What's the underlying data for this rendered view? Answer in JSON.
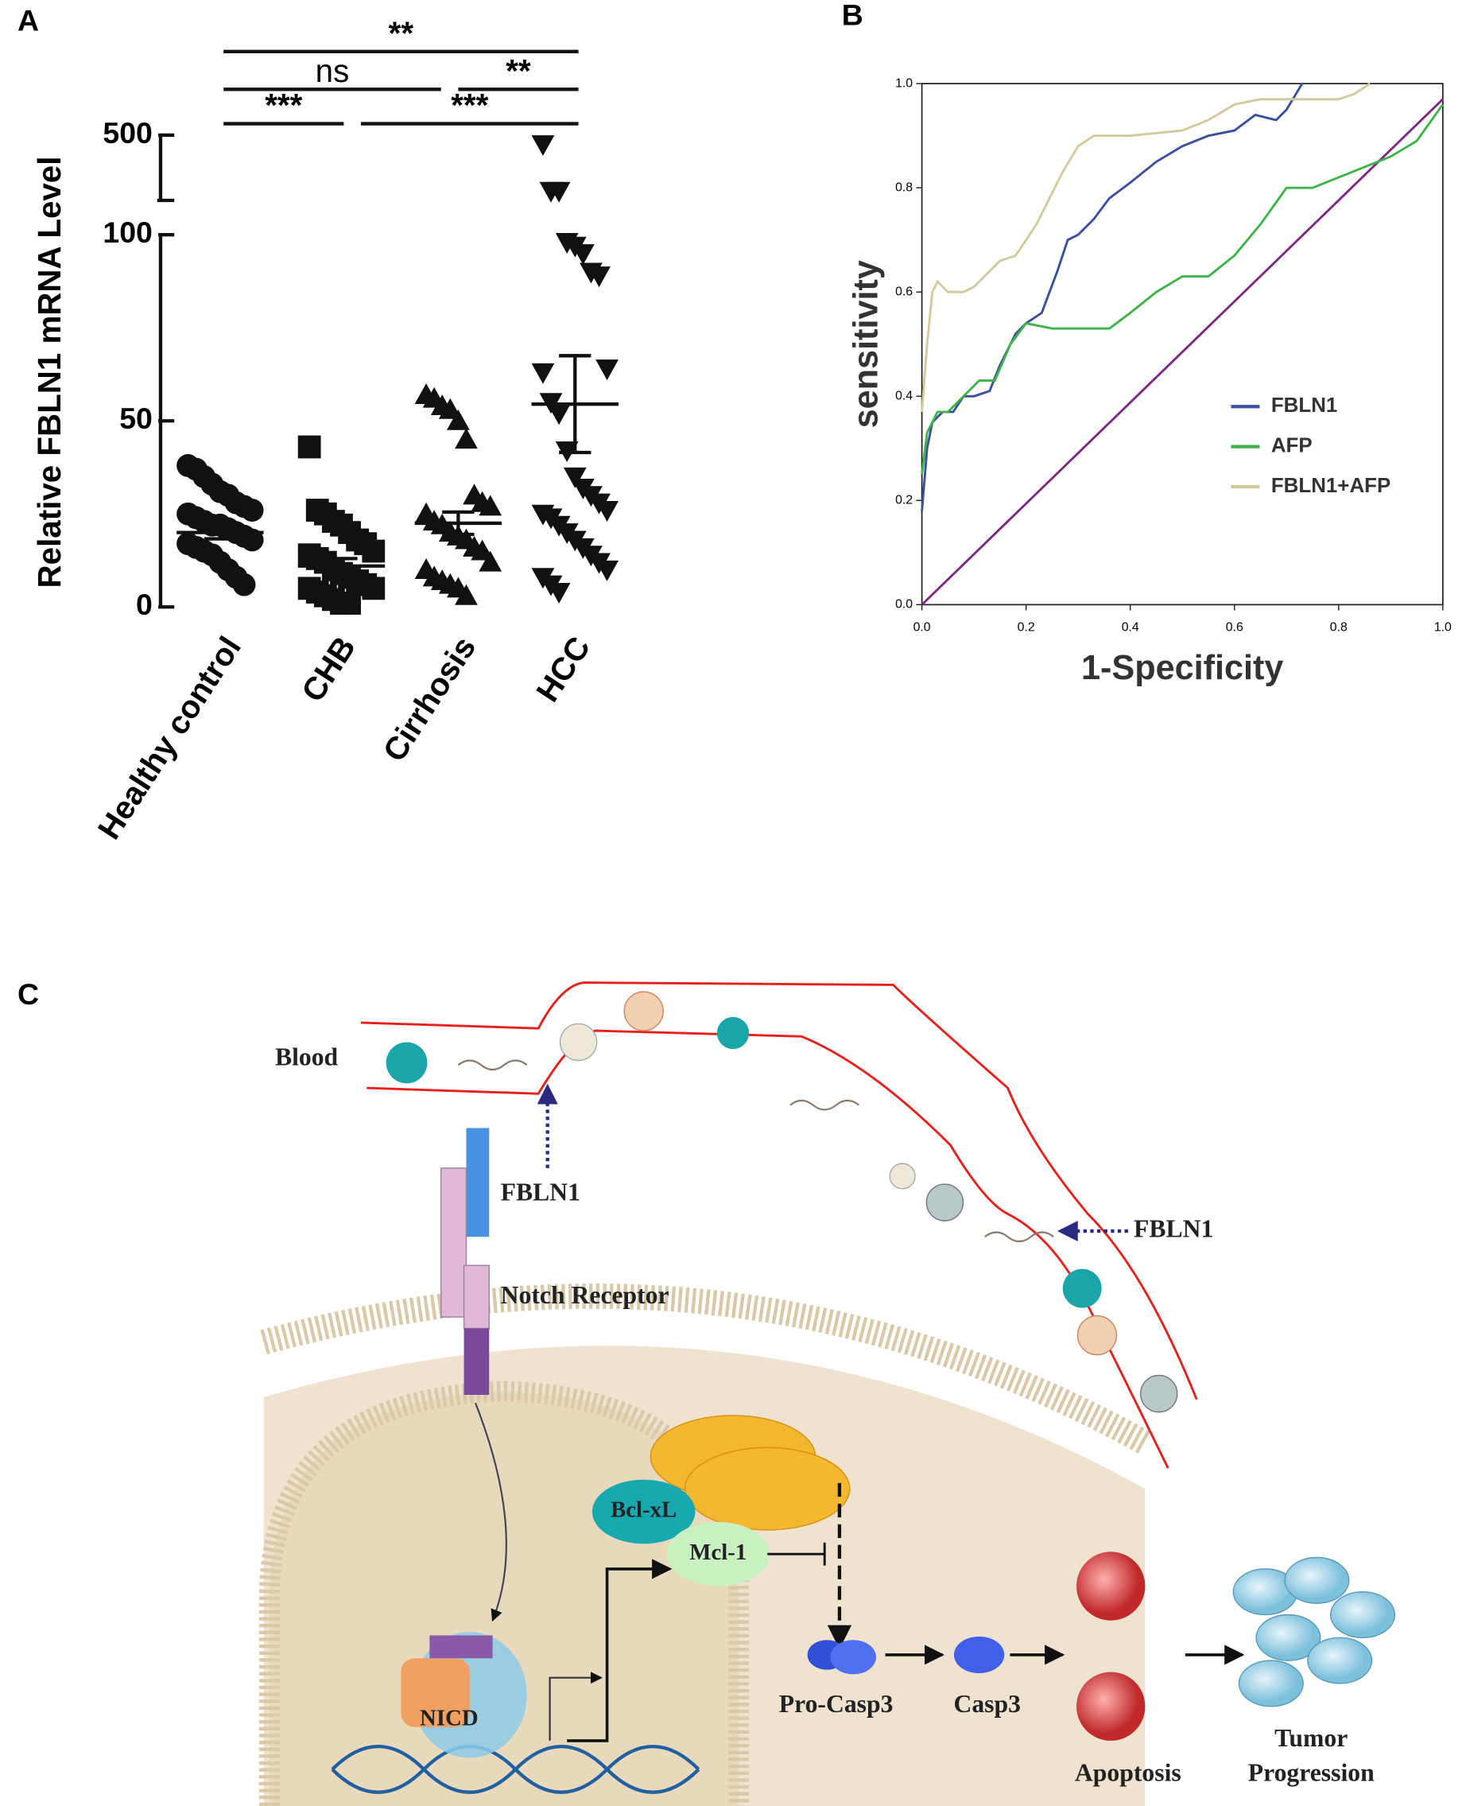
{
  "chart_data": [
    {
      "type": "dotplot",
      "ylabel": "Relative FBLN1 mRNA Level",
      "categories": [
        "Healthy control",
        "CHB",
        "Cirrhosis",
        "HCC"
      ],
      "ylim": [
        0,
        500
      ],
      "ybreak": [
        100,
        150
      ],
      "yticks": [
        0,
        50,
        100,
        500
      ],
      "groups": [
        {
          "marker": "circle",
          "mean": 20,
          "sem": 1.7,
          "values": [
            38,
            37,
            35,
            33,
            31,
            30,
            28,
            27,
            26,
            25,
            24,
            23,
            22,
            22,
            21,
            20,
            19,
            18,
            17,
            16,
            15,
            14,
            12,
            10,
            8,
            6
          ]
        },
        {
          "marker": "square",
          "mean": 11,
          "sem": 2,
          "values": [
            43,
            26,
            25,
            23,
            22,
            20,
            18,
            17,
            15,
            14,
            13,
            12,
            10,
            9,
            8,
            7,
            6,
            5,
            5,
            4,
            3,
            2,
            1,
            1
          ]
        },
        {
          "marker": "triangle-up",
          "mean": 22.5,
          "sem": 3,
          "values": [
            57,
            56,
            54,
            53,
            50,
            45,
            30,
            28,
            27,
            25,
            23,
            22,
            20,
            19,
            18,
            16,
            15,
            12,
            10,
            8,
            7,
            6,
            5,
            3
          ]
        },
        {
          "marker": "triangle-down",
          "mean": 54.5,
          "sem": 13,
          "values": [
            450,
            200,
            200,
            98,
            97,
            95,
            90,
            89,
            64,
            63,
            55,
            52,
            42,
            35,
            32,
            30,
            28,
            26,
            25,
            24,
            22,
            20,
            18,
            16,
            14,
            12,
            10,
            8,
            6,
            4
          ]
        }
      ],
      "significance": [
        "**",
        "ns",
        "**",
        "***",
        "***"
      ]
    },
    {
      "type": "line",
      "xlabel": "1-Specificity",
      "ylabel": "sensitivity",
      "xlim": [
        0,
        1
      ],
      "ylim": [
        0,
        1
      ],
      "xticks": [
        {
          "value": 0,
          "label": "0.0"
        },
        0.2,
        0.4,
        0.6,
        0.8,
        {
          "value": 1,
          "label": "1.0"
        }
      ],
      "yticks": [
        {
          "value": 0,
          "label": "0.0"
        },
        0.2,
        0.4,
        0.6,
        0.8,
        {
          "value": 1,
          "label": "1.0"
        }
      ],
      "series": [
        {
          "name": "FBLN1",
          "color": "#3a4f9e",
          "x": [
            0,
            0.01,
            0.02,
            0.04,
            0.06,
            0.08,
            0.1,
            0.13,
            0.15,
            0.18,
            0.2,
            0.23,
            0.26,
            0.28,
            0.3,
            0.33,
            0.36,
            0.4,
            0.45,
            0.5,
            0.55,
            0.6,
            0.64,
            0.68,
            0.7,
            0.73
          ],
          "values": [
            0.18,
            0.3,
            0.35,
            0.37,
            0.37,
            0.4,
            0.4,
            0.41,
            0.46,
            0.52,
            0.54,
            0.56,
            0.64,
            0.7,
            0.71,
            0.74,
            0.78,
            0.81,
            0.85,
            0.88,
            0.9,
            0.91,
            0.94,
            0.93,
            0.95,
            1.0
          ]
        },
        {
          "name": "AFP",
          "color": "#3db34a",
          "x": [
            0,
            0.01,
            0.03,
            0.05,
            0.08,
            0.11,
            0.14,
            0.17,
            0.2,
            0.25,
            0.3,
            0.36,
            0.4,
            0.45,
            0.5,
            0.55,
            0.6,
            0.65,
            0.7,
            0.75,
            0.8,
            0.85,
            0.9,
            0.95,
            1.0
          ],
          "values": [
            0.25,
            0.33,
            0.37,
            0.37,
            0.4,
            0.43,
            0.43,
            0.5,
            0.54,
            0.53,
            0.53,
            0.53,
            0.56,
            0.6,
            0.63,
            0.63,
            0.67,
            0.73,
            0.8,
            0.8,
            0.82,
            0.84,
            0.86,
            0.89,
            0.96
          ]
        },
        {
          "name": "FBLN1+AFP",
          "color": "#d2c99c",
          "x": [
            0,
            0.01,
            0.02,
            0.03,
            0.05,
            0.08,
            0.1,
            0.15,
            0.18,
            0.22,
            0.27,
            0.3,
            0.33,
            0.4,
            0.5,
            0.55,
            0.6,
            0.65,
            0.7,
            0.8,
            0.83,
            0.86
          ],
          "values": [
            0.37,
            0.5,
            0.6,
            0.62,
            0.6,
            0.6,
            0.61,
            0.66,
            0.67,
            0.73,
            0.83,
            0.88,
            0.9,
            0.9,
            0.91,
            0.93,
            0.96,
            0.97,
            0.97,
            0.97,
            0.98,
            1.0
          ]
        }
      ],
      "reference_line": {
        "color": "#7b2a80",
        "x": [
          0,
          1
        ],
        "values": [
          0,
          0.97
        ]
      }
    }
  ],
  "panels": [
    "A",
    "B",
    "C"
  ],
  "diagram": {
    "blood": "Blood",
    "fbln1_left": "FBLN1",
    "fbln1_right": "FBLN1",
    "notch": "Notch Receptor",
    "bclxl": "Bcl-xL",
    "mcl1": "Mcl-1",
    "nicd": "NICD",
    "procasp3": "Pro-Casp3",
    "casp3": "Casp3",
    "apoptosis": "Apoptosis",
    "tumor": [
      "Tumor",
      "Progression"
    ]
  }
}
